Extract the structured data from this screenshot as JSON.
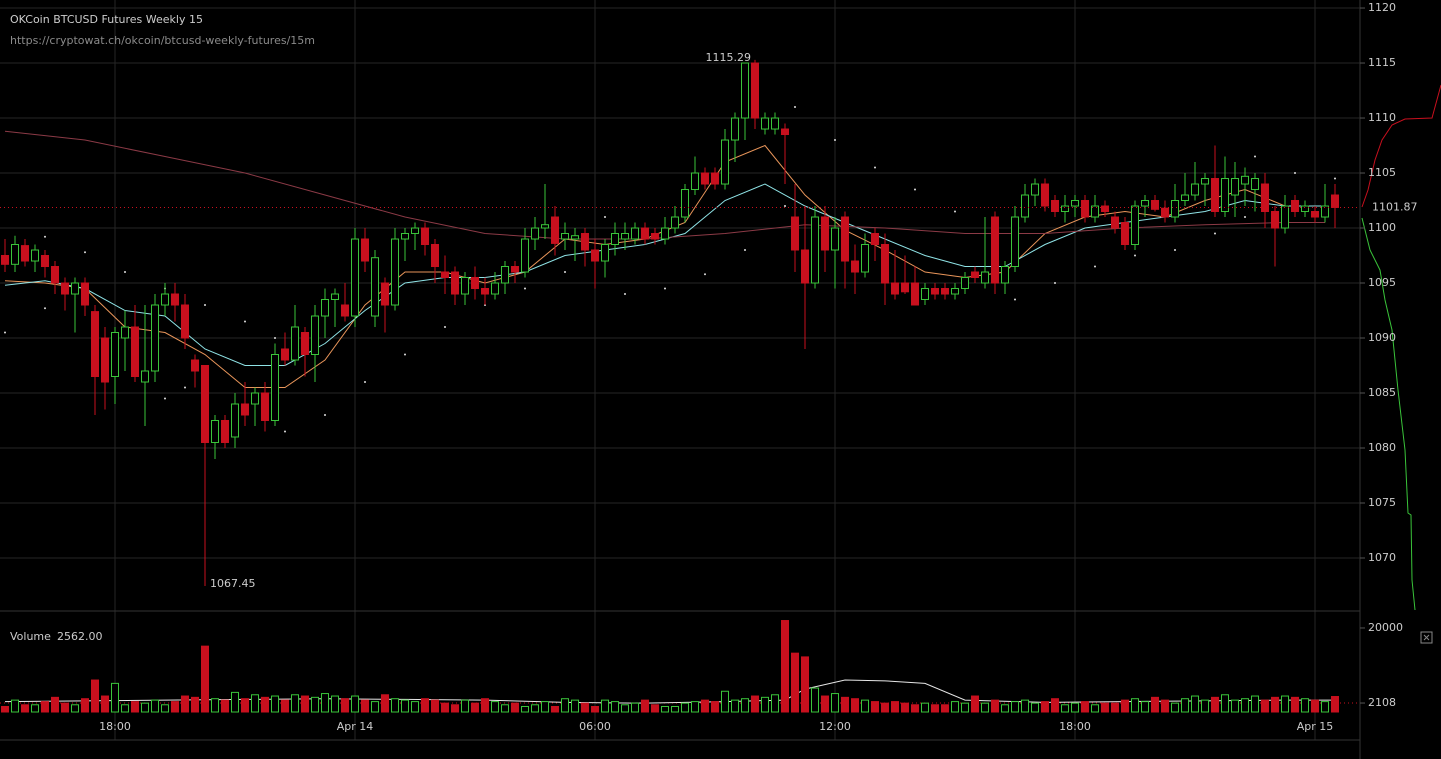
{
  "chart_data": {
    "type": "candlestick",
    "title": "OKCoin BTCUSD Futures Weekly 15",
    "subtitle": "https://cryptowat.ch/okcoin/btcusd-weekly-futures/15m",
    "volume_label": "Volume",
    "volume_readout": "2562.00",
    "up_color": "#3ac43a",
    "down_color": "#c8101e",
    "grid": true,
    "ylim": [
      1065.18,
      1120.73
    ],
    "yticks": [
      1070,
      1075,
      1080,
      1085,
      1090,
      1095,
      1100,
      1105,
      1110,
      1115,
      1120
    ],
    "volume_ylim": [
      1611,
      25400
    ],
    "volume_log": true,
    "volume_yticks": [
      2108,
      20000
    ],
    "categories": [
      null,
      null,
      null,
      null,
      null,
      null,
      null,
      null,
      null,
      null,
      null,
      "18:00",
      null,
      null,
      null,
      null,
      null,
      null,
      null,
      null,
      null,
      null,
      null,
      null,
      null,
      null,
      null,
      null,
      null,
      null,
      null,
      null,
      null,
      null,
      null,
      "Apr 14",
      null,
      null,
      null,
      null,
      null,
      null,
      null,
      null,
      null,
      null,
      null,
      null,
      null,
      null,
      null,
      null,
      null,
      null,
      null,
      null,
      null,
      null,
      null,
      "06:00",
      null,
      null,
      null,
      null,
      null,
      null,
      null,
      null,
      null,
      null,
      null,
      null,
      null,
      null,
      null,
      null,
      null,
      null,
      null,
      null,
      null,
      null,
      null,
      "12:00",
      null,
      null,
      null,
      null,
      null,
      null,
      null,
      null,
      null,
      null,
      null,
      null,
      null,
      null,
      null,
      null,
      null,
      null,
      null,
      null,
      null,
      null,
      null,
      "18:00",
      null,
      null,
      null,
      null,
      null,
      null,
      null,
      null,
      null,
      null,
      null,
      null,
      null,
      null,
      null,
      null,
      null,
      null,
      null,
      null,
      null,
      null,
      null,
      "Apr 15",
      null,
      null
    ],
    "ohlc": [
      [
        1097.5,
        1099,
        1096,
        1096.7
      ],
      [
        1096.7,
        1099.3,
        1096,
        1098.5
      ],
      [
        1098.4,
        1099,
        1096.5,
        1097
      ],
      [
        1097,
        1098.5,
        1096,
        1098
      ],
      [
        1097.5,
        1098,
        1095.5,
        1096.5
      ],
      [
        1096.5,
        1097,
        1094,
        1095
      ],
      [
        1095,
        1095.5,
        1092.5,
        1094
      ],
      [
        1094,
        1095.5,
        1090.5,
        1095
      ],
      [
        1095,
        1095.5,
        1092,
        1093
      ],
      [
        1092.4,
        1093,
        1083,
        1086.5
      ],
      [
        1090,
        1091,
        1083.5,
        1086
      ],
      [
        1086.5,
        1091,
        1084,
        1090.5
      ],
      [
        1090,
        1092.5,
        1087,
        1091
      ],
      [
        1091,
        1093,
        1086,
        1086.5
      ],
      [
        1086,
        1093,
        1082,
        1087
      ],
      [
        1087,
        1094,
        1086,
        1093
      ],
      [
        1093,
        1095,
        1092,
        1094
      ],
      [
        1094,
        1095,
        1091.5,
        1093
      ],
      [
        1093,
        1094,
        1089,
        1090
      ],
      [
        1088,
        1088.5,
        1085.5,
        1087
      ],
      [
        1087.5,
        1087.5,
        1067.45,
        1080.5
      ],
      [
        1080.5,
        1083,
        1079,
        1082.5
      ],
      [
        1082.5,
        1083,
        1080,
        1080.5
      ],
      [
        1081,
        1085,
        1080,
        1084
      ],
      [
        1084,
        1086,
        1082,
        1083
      ],
      [
        1084,
        1085.5,
        1082,
        1085
      ],
      [
        1085,
        1086,
        1081.5,
        1082.5
      ],
      [
        1082.5,
        1089.5,
        1082,
        1088.5
      ],
      [
        1089,
        1090.5,
        1087.5,
        1088
      ],
      [
        1088,
        1093,
        1087.5,
        1091
      ],
      [
        1090.5,
        1091,
        1086.5,
        1088.5
      ],
      [
        1088.5,
        1093,
        1086,
        1092
      ],
      [
        1092,
        1094.5,
        1090,
        1093.5
      ],
      [
        1093.5,
        1094.5,
        1091,
        1094
      ],
      [
        1093,
        1095,
        1091.5,
        1092
      ],
      [
        1092,
        1100,
        1091,
        1099
      ],
      [
        1099,
        1100,
        1096,
        1097
      ],
      [
        1092,
        1098,
        1091,
        1097.3
      ],
      [
        1095,
        1095.5,
        1090.5,
        1093
      ],
      [
        1093,
        1100,
        1092.5,
        1099
      ],
      [
        1099,
        1100,
        1097,
        1099.5
      ],
      [
        1099.5,
        1100.5,
        1098,
        1100
      ],
      [
        1100,
        1100.5,
        1097.5,
        1098.5
      ],
      [
        1098.5,
        1099,
        1095,
        1096.5
      ],
      [
        1096,
        1097.5,
        1094,
        1095.5
      ],
      [
        1096,
        1096.5,
        1093,
        1094
      ],
      [
        1094,
        1096,
        1093,
        1095.5
      ],
      [
        1095.5,
        1096.5,
        1093.5,
        1094.5
      ],
      [
        1094.5,
        1095.5,
        1093,
        1094
      ],
      [
        1094,
        1096,
        1093.5,
        1095
      ],
      [
        1095,
        1097,
        1094,
        1096.5
      ],
      [
        1096.5,
        1097,
        1095,
        1096
      ],
      [
        1096,
        1100,
        1095.5,
        1099
      ],
      [
        1099,
        1101,
        1098,
        1100
      ],
      [
        1100,
        1104,
        1099,
        1100.3
      ],
      [
        1101,
        1102,
        1097.5,
        1098.6
      ],
      [
        1099,
        1100.5,
        1098,
        1099.5
      ],
      [
        1099,
        1100,
        1097,
        1099.3
      ],
      [
        1099.5,
        1100,
        1096.5,
        1098
      ],
      [
        1098,
        1099,
        1094.5,
        1097
      ],
      [
        1097,
        1099,
        1095.5,
        1098.5
      ],
      [
        1098.5,
        1100.5,
        1097.5,
        1099.5
      ],
      [
        1099,
        1100.5,
        1098,
        1099.5
      ],
      [
        1099,
        1100.5,
        1098.5,
        1100
      ],
      [
        1100,
        1100.5,
        1098.5,
        1099
      ],
      [
        1099.5,
        1100,
        1098.5,
        1099
      ],
      [
        1099,
        1101,
        1098.5,
        1100
      ],
      [
        1100,
        1102,
        1099.5,
        1101
      ],
      [
        1101,
        1104,
        1100.5,
        1103.5
      ],
      [
        1103.5,
        1106.5,
        1103,
        1105
      ],
      [
        1105,
        1105.5,
        1103.5,
        1104
      ],
      [
        1105,
        1105.5,
        1103.5,
        1104
      ],
      [
        1104,
        1109,
        1103.5,
        1108
      ],
      [
        1108,
        1110.5,
        1106,
        1110
      ],
      [
        1110,
        1115,
        1108,
        1115
      ],
      [
        1115,
        1115.29,
        1109,
        1110
      ],
      [
        1109,
        1110.5,
        1108.5,
        1110
      ],
      [
        1109,
        1110.5,
        1108.5,
        1110
      ],
      [
        1109,
        1109.5,
        1104,
        1108.5
      ],
      [
        1101,
        1104,
        1096,
        1098
      ],
      [
        1098,
        1102,
        1089,
        1095
      ],
      [
        1095,
        1102,
        1094.5,
        1101
      ],
      [
        1101,
        1102,
        1096,
        1098
      ],
      [
        1098,
        1101,
        1094.5,
        1100
      ],
      [
        1101,
        1101.5,
        1094.5,
        1097
      ],
      [
        1097,
        1098.5,
        1094,
        1096
      ],
      [
        1096,
        1099.5,
        1095.5,
        1098.5
      ],
      [
        1099.5,
        1100,
        1097,
        1098.5
      ],
      [
        1098.5,
        1099.5,
        1093,
        1095
      ],
      [
        1095,
        1098,
        1093.5,
        1094
      ],
      [
        1095,
        1097.5,
        1094,
        1094.2
      ],
      [
        1095,
        1096.5,
        1093,
        1093
      ],
      [
        1093.5,
        1095,
        1093,
        1094.5
      ],
      [
        1094.5,
        1095,
        1093.5,
        1094
      ],
      [
        1094.5,
        1095,
        1093.5,
        1094
      ],
      [
        1094,
        1095,
        1093.5,
        1094.5
      ],
      [
        1094.5,
        1096,
        1094,
        1095.5
      ],
      [
        1096,
        1096.5,
        1095,
        1095.5
      ],
      [
        1095,
        1101,
        1094.5,
        1096
      ],
      [
        1101,
        1101.5,
        1094,
        1095
      ],
      [
        1095,
        1097,
        1094,
        1096.5
      ],
      [
        1096.5,
        1102,
        1096,
        1101
      ],
      [
        1101,
        1104,
        1100.5,
        1103
      ],
      [
        1103,
        1104.5,
        1102,
        1104
      ],
      [
        1104,
        1104.5,
        1101.5,
        1102
      ],
      [
        1102.5,
        1103,
        1101,
        1101.5
      ],
      [
        1101.5,
        1103,
        1100.5,
        1102
      ],
      [
        1102,
        1103,
        1101,
        1102.5
      ],
      [
        1102.5,
        1103,
        1100.5,
        1101
      ],
      [
        1101,
        1103,
        1100.5,
        1102
      ],
      [
        1102,
        1102.5,
        1101,
        1101.5
      ],
      [
        1101,
        1101.5,
        1099.5,
        1100
      ],
      [
        1100.5,
        1101,
        1098,
        1098.5
      ],
      [
        1098.5,
        1102.5,
        1098,
        1102
      ],
      [
        1102,
        1103,
        1101,
        1102.5
      ],
      [
        1102.5,
        1103,
        1101.5,
        1101.7
      ],
      [
        1101.8,
        1102.5,
        1100.5,
        1101
      ],
      [
        1101,
        1104,
        1100.5,
        1102.5
      ],
      [
        1102.5,
        1105,
        1102,
        1103
      ],
      [
        1103,
        1106,
        1102.5,
        1104
      ],
      [
        1104,
        1105,
        1102,
        1104.5
      ],
      [
        1104.5,
        1107.5,
        1101,
        1101.5
      ],
      [
        1101.5,
        1106.5,
        1101,
        1104.5
      ],
      [
        1103,
        1106,
        1101,
        1104.5
      ],
      [
        1104,
        1105.5,
        1102,
        1104.7
      ],
      [
        1103.5,
        1105,
        1101.5,
        1104.5
      ],
      [
        1104,
        1105,
        1100,
        1101.5
      ],
      [
        1101.5,
        1102,
        1096.5,
        1100
      ],
      [
        1100,
        1103,
        1099.5,
        1102
      ],
      [
        1102.5,
        1103,
        1101,
        1101.5
      ],
      [
        1101.5,
        1102.5,
        1101,
        1102
      ],
      [
        1101.5,
        1102,
        1100.5,
        1101
      ],
      [
        1101,
        1104,
        1100.5,
        1102
      ],
      [
        1103,
        1104,
        1100,
        1101.87
      ]
    ],
    "volume": [
      1900,
      2300,
      2000,
      2000,
      2200,
      2500,
      2100,
      2000,
      2400,
      4200,
      2600,
      3800,
      2000,
      2200,
      2100,
      2300,
      2000,
      2200,
      2600,
      2500,
      11600,
      2400,
      2300,
      2900,
      2400,
      2700,
      2500,
      2600,
      2300,
      2700,
      2600,
      2500,
      2800,
      2600,
      2400,
      2600,
      2300,
      2200,
      2700,
      2400,
      2300,
      2200,
      2400,
      2300,
      2100,
      2000,
      2300,
      2100,
      2400,
      2200,
      2000,
      2100,
      1900,
      2000,
      2200,
      1900,
      2400,
      2300,
      2100,
      1900,
      2300,
      2200,
      2000,
      2100,
      2300,
      2000,
      1900,
      1900,
      2100,
      2200,
      2300,
      2200,
      3000,
      2300,
      2400,
      2600,
      2500,
      2700,
      25000,
      9400,
      8400,
      3300,
      2600,
      2800,
      2500,
      2400,
      2300,
      2200,
      2100,
      2200,
      2100,
      2000,
      2100,
      2000,
      2000,
      2200,
      2100,
      2600,
      2100,
      2300,
      2000,
      2200,
      2300,
      2100,
      2200,
      2400,
      2000,
      2100,
      2200,
      2000,
      2100,
      2100,
      2300,
      2400,
      2200,
      2500,
      2300,
      2100,
      2400,
      2600,
      2300,
      2500,
      2700,
      2300,
      2400,
      2600,
      2300,
      2500,
      2600,
      2500,
      2400,
      2300,
      2200,
      2562
    ],
    "series": [
      {
        "color": "#e8955a",
        "x": [
          0,
          4,
          8,
          12,
          16,
          20,
          24,
          28,
          32,
          36,
          40,
          44,
          48,
          52,
          56,
          60,
          64,
          68,
          72,
          76,
          80,
          84,
          88,
          92,
          96,
          100,
          104,
          108,
          112,
          116,
          120,
          124,
          128,
          132
        ],
        "values": [
          1095.2,
          1095,
          1094.5,
          1091,
          1090.5,
          1088.5,
          1085.5,
          1085.5,
          1088,
          1093,
          1096,
          1096,
          1095,
          1096,
          1099,
          1098.5,
          1099,
          1100.5,
          1106,
          1107.5,
          1103,
          1099.8,
          1098,
          1096,
          1095.5,
          1096,
          1099.5,
          1101,
          1101.5,
          1101,
          1102.5,
          1103.5,
          1102,
          1102
        ]
      },
      {
        "color": "#8fe3e6",
        "x": [
          0,
          4,
          8,
          12,
          16,
          20,
          24,
          28,
          32,
          36,
          40,
          44,
          48,
          52,
          56,
          60,
          64,
          68,
          72,
          76,
          80,
          84,
          88,
          92,
          96,
          100,
          104,
          108,
          112,
          116,
          120,
          124,
          128,
          132
        ],
        "values": [
          1094.8,
          1095.2,
          1094.5,
          1092.5,
          1092,
          1089,
          1087.5,
          1087.5,
          1089.5,
          1092.5,
          1095,
          1095.5,
          1095.5,
          1096,
          1097.5,
          1098,
          1098.5,
          1099.5,
          1102.5,
          1104,
          1102,
          1100.5,
          1099,
          1097.5,
          1096.5,
          1096.5,
          1098.5,
          1100,
          1100.5,
          1101,
          1101.5,
          1102.5,
          1102,
          1102
        ]
      },
      {
        "color": "#8b3a46",
        "x": [
          0,
          8,
          16,
          24,
          32,
          40,
          48,
          56,
          64,
          72,
          80,
          88,
          96,
          104,
          112,
          120,
          128,
          132
        ],
        "values": [
          1108.8,
          1108,
          1106.5,
          1105,
          1103,
          1101,
          1099.5,
          1099,
          1099,
          1099.5,
          1100.3,
          1100,
          1099.5,
          1099.5,
          1100,
          1100.3,
          1100.5,
          1100.5
        ]
      }
    ],
    "sar": {
      "color": "#dddddd",
      "x": [
        0,
        4,
        4,
        8,
        12,
        16,
        20,
        24,
        27,
        16,
        18,
        28,
        32,
        36,
        40,
        44,
        48,
        52,
        56,
        60,
        62,
        66,
        70,
        74,
        78,
        79,
        83,
        87,
        91,
        95,
        99,
        101,
        105,
        109,
        113,
        117,
        121,
        124,
        125,
        129,
        133
      ],
      "values": [
        1090.5,
        1092.7,
        1099.2,
        1097.8,
        1096,
        1094.5,
        1093,
        1091.5,
        1090,
        1084.5,
        1085.5,
        1081.5,
        1083,
        1086,
        1088.5,
        1091,
        1093,
        1094.5,
        1096,
        1101,
        1094,
        1094.5,
        1095.8,
        1098,
        1102,
        1111,
        1108,
        1105.5,
        1103.5,
        1101.5,
        1100,
        1093.5,
        1095,
        1096.5,
        1097.5,
        1098,
        1099.5,
        1101,
        1106.5,
        1105,
        1104.5
      ]
    },
    "volume_ma": {
      "color": "#e6e6e6",
      "x": [
        0,
        8,
        16,
        24,
        32,
        40,
        48,
        56,
        64,
        72,
        78,
        80,
        84,
        88,
        92,
        96,
        104,
        112,
        120,
        128,
        133
      ],
      "values": [
        2200,
        2250,
        2300,
        2350,
        2400,
        2350,
        2300,
        2150,
        2100,
        2200,
        2300,
        3200,
        4200,
        4100,
        3800,
        2300,
        2150,
        2200,
        2250,
        2300,
        2300
      ]
    }
  }
}
